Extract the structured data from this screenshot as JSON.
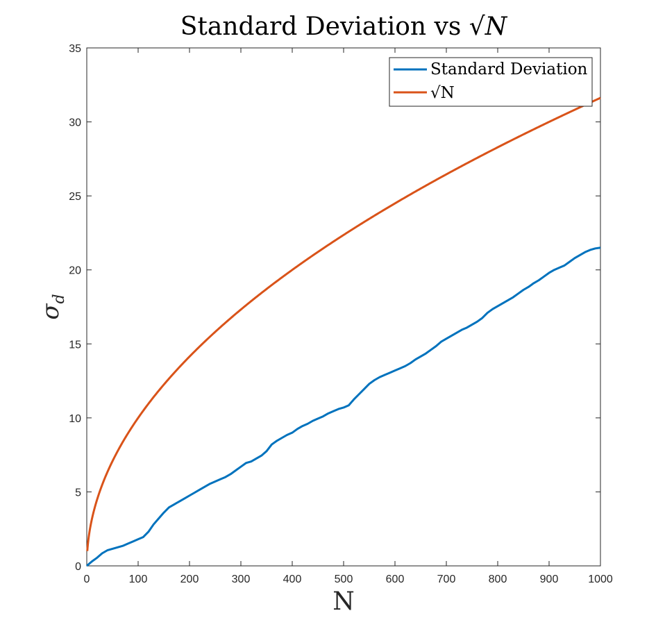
{
  "chart_data": {
    "type": "line",
    "title": {
      "prefix": "Standard Deviation vs ",
      "radical": "√",
      "variable": "N"
    },
    "xlabel": "N",
    "ylabel": {
      "symbol": "σ",
      "subscript": "d"
    },
    "xlim": [
      0,
      1000
    ],
    "ylim": [
      0,
      35
    ],
    "xticks": [
      0,
      100,
      200,
      300,
      400,
      500,
      600,
      700,
      800,
      900,
      1000
    ],
    "yticks": [
      0,
      5,
      10,
      15,
      20,
      25,
      30,
      35
    ],
    "grid": false,
    "legend_position": "top-right",
    "series": [
      {
        "name": "Standard Deviation",
        "color": "#0072BD",
        "x": [
          0,
          10,
          20,
          30,
          40,
          50,
          60,
          70,
          80,
          90,
          100,
          110,
          120,
          130,
          140,
          150,
          160,
          170,
          180,
          190,
          200,
          210,
          220,
          230,
          240,
          250,
          260,
          270,
          280,
          290,
          300,
          310,
          320,
          330,
          340,
          350,
          360,
          370,
          380,
          390,
          400,
          410,
          420,
          430,
          440,
          450,
          460,
          470,
          480,
          490,
          500,
          510,
          520,
          530,
          540,
          550,
          560,
          570,
          580,
          590,
          600,
          610,
          620,
          630,
          640,
          650,
          660,
          670,
          680,
          690,
          700,
          710,
          720,
          730,
          740,
          750,
          760,
          770,
          780,
          790,
          800,
          810,
          820,
          830,
          840,
          850,
          860,
          870,
          880,
          890,
          900,
          910,
          920,
          930,
          940,
          950,
          960,
          970,
          980,
          990,
          1000
        ],
        "y": [
          0.0,
          0.3,
          0.55,
          0.85,
          1.05,
          1.15,
          1.25,
          1.35,
          1.5,
          1.65,
          1.8,
          1.95,
          2.3,
          2.8,
          3.2,
          3.6,
          3.95,
          4.15,
          4.35,
          4.55,
          4.75,
          4.95,
          5.15,
          5.35,
          5.55,
          5.7,
          5.85,
          6.0,
          6.2,
          6.45,
          6.7,
          6.95,
          7.05,
          7.25,
          7.45,
          7.75,
          8.2,
          8.45,
          8.65,
          8.85,
          9.0,
          9.25,
          9.45,
          9.6,
          9.8,
          9.95,
          10.1,
          10.3,
          10.45,
          10.6,
          10.7,
          10.85,
          11.25,
          11.6,
          11.95,
          12.3,
          12.55,
          12.75,
          12.9,
          13.05,
          13.2,
          13.35,
          13.5,
          13.7,
          13.95,
          14.15,
          14.35,
          14.6,
          14.85,
          15.15,
          15.35,
          15.55,
          15.75,
          15.95,
          16.1,
          16.3,
          16.5,
          16.75,
          17.1,
          17.35,
          17.55,
          17.75,
          17.95,
          18.15,
          18.4,
          18.65,
          18.85,
          19.1,
          19.3,
          19.55,
          19.8,
          20.0,
          20.15,
          20.3,
          20.55,
          20.8,
          21.0,
          21.2,
          21.35,
          21.45,
          21.5
        ]
      },
      {
        "name": "√N",
        "color": "#D95319",
        "function": "sqrt",
        "x": [
          1,
          2,
          5,
          10,
          20,
          30,
          50,
          75,
          100,
          150,
          200,
          250,
          300,
          350,
          400,
          450,
          500,
          550,
          600,
          650,
          700,
          750,
          800,
          850,
          900,
          950,
          1000
        ],
        "y": [
          1.0,
          1.41,
          2.24,
          3.16,
          4.47,
          5.48,
          7.07,
          8.66,
          10.0,
          12.25,
          14.14,
          15.81,
          17.32,
          18.71,
          20.0,
          21.21,
          22.36,
          23.45,
          24.49,
          25.5,
          26.46,
          27.39,
          28.28,
          29.15,
          30.0,
          30.82,
          31.62
        ]
      }
    ]
  }
}
